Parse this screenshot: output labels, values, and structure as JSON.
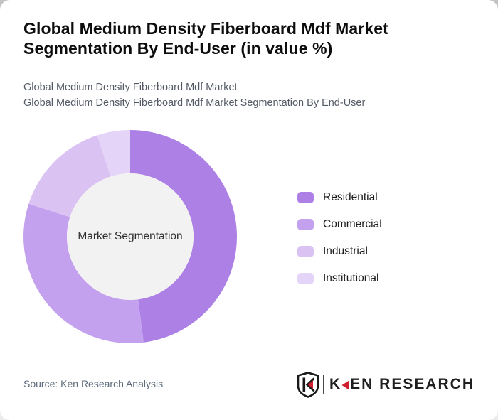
{
  "page": {
    "title": "Global Medium Density Fiberboard Mdf Market Segmentation By End-User (in value %)",
    "subtitle_line1": "Global Medium Density Fiberboard Mdf Market",
    "subtitle_line2": "Global Medium Density Fiberboard Mdf Market Segmentation By End-User"
  },
  "chart_data": {
    "type": "pie",
    "variant": "donut",
    "title": "Global Medium Density Fiberboard Mdf Market Segmentation By End-User (in value %)",
    "center_label": "Market Segmentation",
    "categories": [
      "Residential",
      "Commercial",
      "Industrial",
      "Institutional"
    ],
    "values": [
      48,
      32,
      15,
      5
    ],
    "unit": "% of value",
    "colors": [
      "#ad80e6",
      "#c4a1ee",
      "#dac3f2",
      "#e4d4f7"
    ],
    "center_fill": "#f2f2f2",
    "start_angle_deg": 0,
    "direction": "clockwise",
    "inner_radius_ratio": 0.59,
    "legend_position": "right",
    "grid": false
  },
  "footer": {
    "source_text": "Source: Ken Research Analysis",
    "logo": {
      "shield_letter": "K",
      "brand_k": "K",
      "brand_rest": "EN RESEARCH",
      "accent_color": "#cf2030",
      "ink_color": "#1a1a1a"
    }
  }
}
